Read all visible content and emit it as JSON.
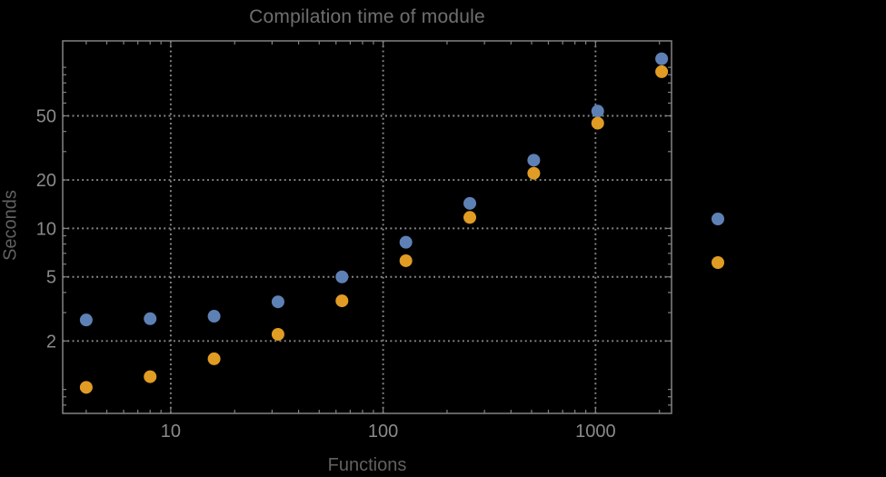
{
  "colors": {
    "background": "#000000",
    "frame": "#828282",
    "grid": "#8a8a8a",
    "tick_label": "#8a8a8a",
    "title_text": "#6f6f6f",
    "axis_label_text": "#616161",
    "series_blue": "#5E81B5",
    "series_orange": "#E19C24"
  },
  "chart_data": {
    "type": "scatter",
    "title": "Compilation time of module",
    "xlabel": "Functions",
    "ylabel": "Seconds",
    "x_scale": "log",
    "y_scale": "log",
    "xlim": [
      3.1,
      2280
    ],
    "ylim": [
      0.71,
      146
    ],
    "grid": "dotted",
    "x_ticks": [
      10,
      100,
      1000
    ],
    "x_tick_labels": [
      "10",
      "100",
      "1000"
    ],
    "y_ticks": [
      2,
      5,
      10,
      20,
      50
    ],
    "y_tick_labels": [
      "2",
      "5",
      "10",
      "20",
      "50"
    ],
    "x": [
      4,
      8,
      16,
      32,
      64,
      128,
      256,
      512,
      1024,
      2048
    ],
    "series": [
      {
        "name": "blue",
        "color": "#5E81B5",
        "values": [
          2.7,
          2.75,
          2.85,
          3.5,
          5.0,
          8.2,
          14.3,
          26.5,
          53.5,
          113
        ]
      },
      {
        "name": "orange",
        "color": "#E19C24",
        "values": [
          1.03,
          1.2,
          1.55,
          2.2,
          3.55,
          6.3,
          11.7,
          22,
          45,
          94
        ]
      }
    ],
    "legend": {
      "position": "right-outside",
      "entries": [
        {
          "series": "blue",
          "label": ""
        },
        {
          "series": "orange",
          "label": ""
        }
      ]
    }
  }
}
